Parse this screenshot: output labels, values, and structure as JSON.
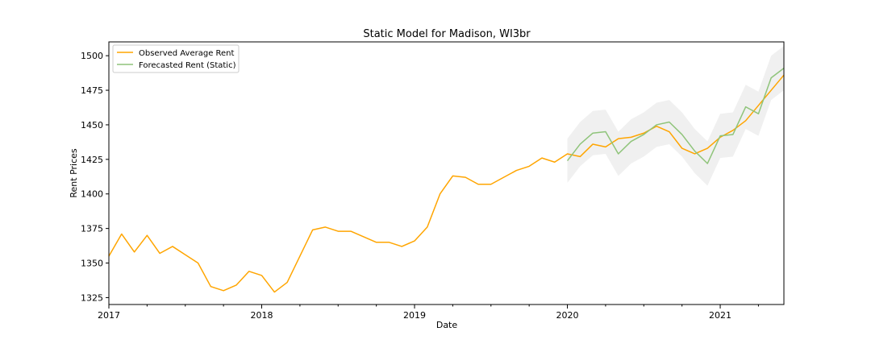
{
  "chart_data": {
    "type": "line",
    "title": "Static Model for Madison, WI3br",
    "xlabel": "Date",
    "ylabel": "Rent Prices",
    "x_major_ticks": [
      {
        "date": "2017-01",
        "label": "2017"
      },
      {
        "date": "2018-01",
        "label": "2018"
      },
      {
        "date": "2019-01",
        "label": "2019"
      },
      {
        "date": "2020-01",
        "label": "2020"
      },
      {
        "date": "2021-01",
        "label": "2021"
      }
    ],
    "xlim": [
      "2017-01",
      "2021-06"
    ],
    "ylim": [
      1320,
      1510
    ],
    "yticks": [
      1325,
      1350,
      1375,
      1400,
      1425,
      1450,
      1475,
      1500
    ],
    "grid": false,
    "legend": "top-left",
    "series": [
      {
        "name": "Observed Average Rent",
        "color": "#ffa500",
        "x": [
          "2017-01",
          "2017-02",
          "2017-03",
          "2017-04",
          "2017-05",
          "2017-06",
          "2017-07",
          "2017-08",
          "2017-09",
          "2017-10",
          "2017-11",
          "2017-12",
          "2018-01",
          "2018-02",
          "2018-03",
          "2018-04",
          "2018-05",
          "2018-06",
          "2018-07",
          "2018-08",
          "2018-09",
          "2018-10",
          "2018-11",
          "2018-12",
          "2019-01",
          "2019-02",
          "2019-03",
          "2019-04",
          "2019-05",
          "2019-06",
          "2019-07",
          "2019-08",
          "2019-09",
          "2019-10",
          "2019-11",
          "2019-12",
          "2020-01",
          "2020-02",
          "2020-03",
          "2020-04",
          "2020-05",
          "2020-06",
          "2020-07",
          "2020-08",
          "2020-09",
          "2020-10",
          "2020-11",
          "2020-12",
          "2021-01",
          "2021-02",
          "2021-03",
          "2021-04",
          "2021-05",
          "2021-06"
        ],
        "values": [
          1355,
          1371,
          1358,
          1370,
          1357,
          1362,
          1356,
          1350,
          1333,
          1330,
          1334,
          1344,
          1341,
          1329,
          1336,
          1355,
          1374,
          1376,
          1373,
          1373,
          1369,
          1365,
          1365,
          1362,
          1366,
          1376,
          1400,
          1413,
          1412,
          1407,
          1407,
          1412,
          1417,
          1420,
          1426,
          1423,
          1429,
          1427,
          1436,
          1434,
          1440,
          1441,
          1444,
          1449,
          1445,
          1433,
          1429,
          1433,
          1441,
          1446,
          1453,
          1464,
          1475,
          1486
        ]
      },
      {
        "name": "Forecasted Rent (Static)",
        "color": "#8fc47a",
        "x": [
          "2020-01",
          "2020-02",
          "2020-03",
          "2020-04",
          "2020-05",
          "2020-06",
          "2020-07",
          "2020-08",
          "2020-09",
          "2020-10",
          "2020-11",
          "2020-12",
          "2021-01",
          "2021-02",
          "2021-03",
          "2021-04",
          "2021-05",
          "2021-06"
        ],
        "values": [
          1424,
          1436,
          1444,
          1445,
          1429,
          1438,
          1443,
          1450,
          1452,
          1443,
          1431,
          1422,
          1442,
          1443,
          1463,
          1458,
          1484,
          1491
        ],
        "lower": [
          1408,
          1420,
          1428,
          1429,
          1413,
          1422,
          1427,
          1434,
          1436,
          1427,
          1415,
          1406,
          1426,
          1427,
          1447,
          1442,
          1468,
          1475
        ],
        "upper": [
          1440,
          1452,
          1460,
          1461,
          1445,
          1454,
          1459,
          1466,
          1468,
          1459,
          1447,
          1438,
          1458,
          1459,
          1479,
          1474,
          1500,
          1507
        ]
      }
    ]
  },
  "colors": {
    "band": "#d9d9d9",
    "axis": "#000000"
  }
}
